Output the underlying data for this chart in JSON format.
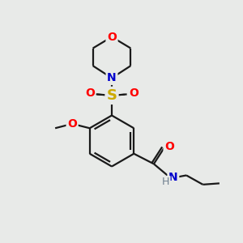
{
  "bg_color": "#e8eae8",
  "bond_color": "#1a1a1a",
  "line_width": 1.6,
  "atom_colors": {
    "O": "#ff0000",
    "N": "#0000cc",
    "S": "#ccaa00",
    "H": "#708090"
  },
  "font_size": 10,
  "font_size_h": 9,
  "figsize": [
    3.0,
    3.0
  ],
  "dpi": 100
}
